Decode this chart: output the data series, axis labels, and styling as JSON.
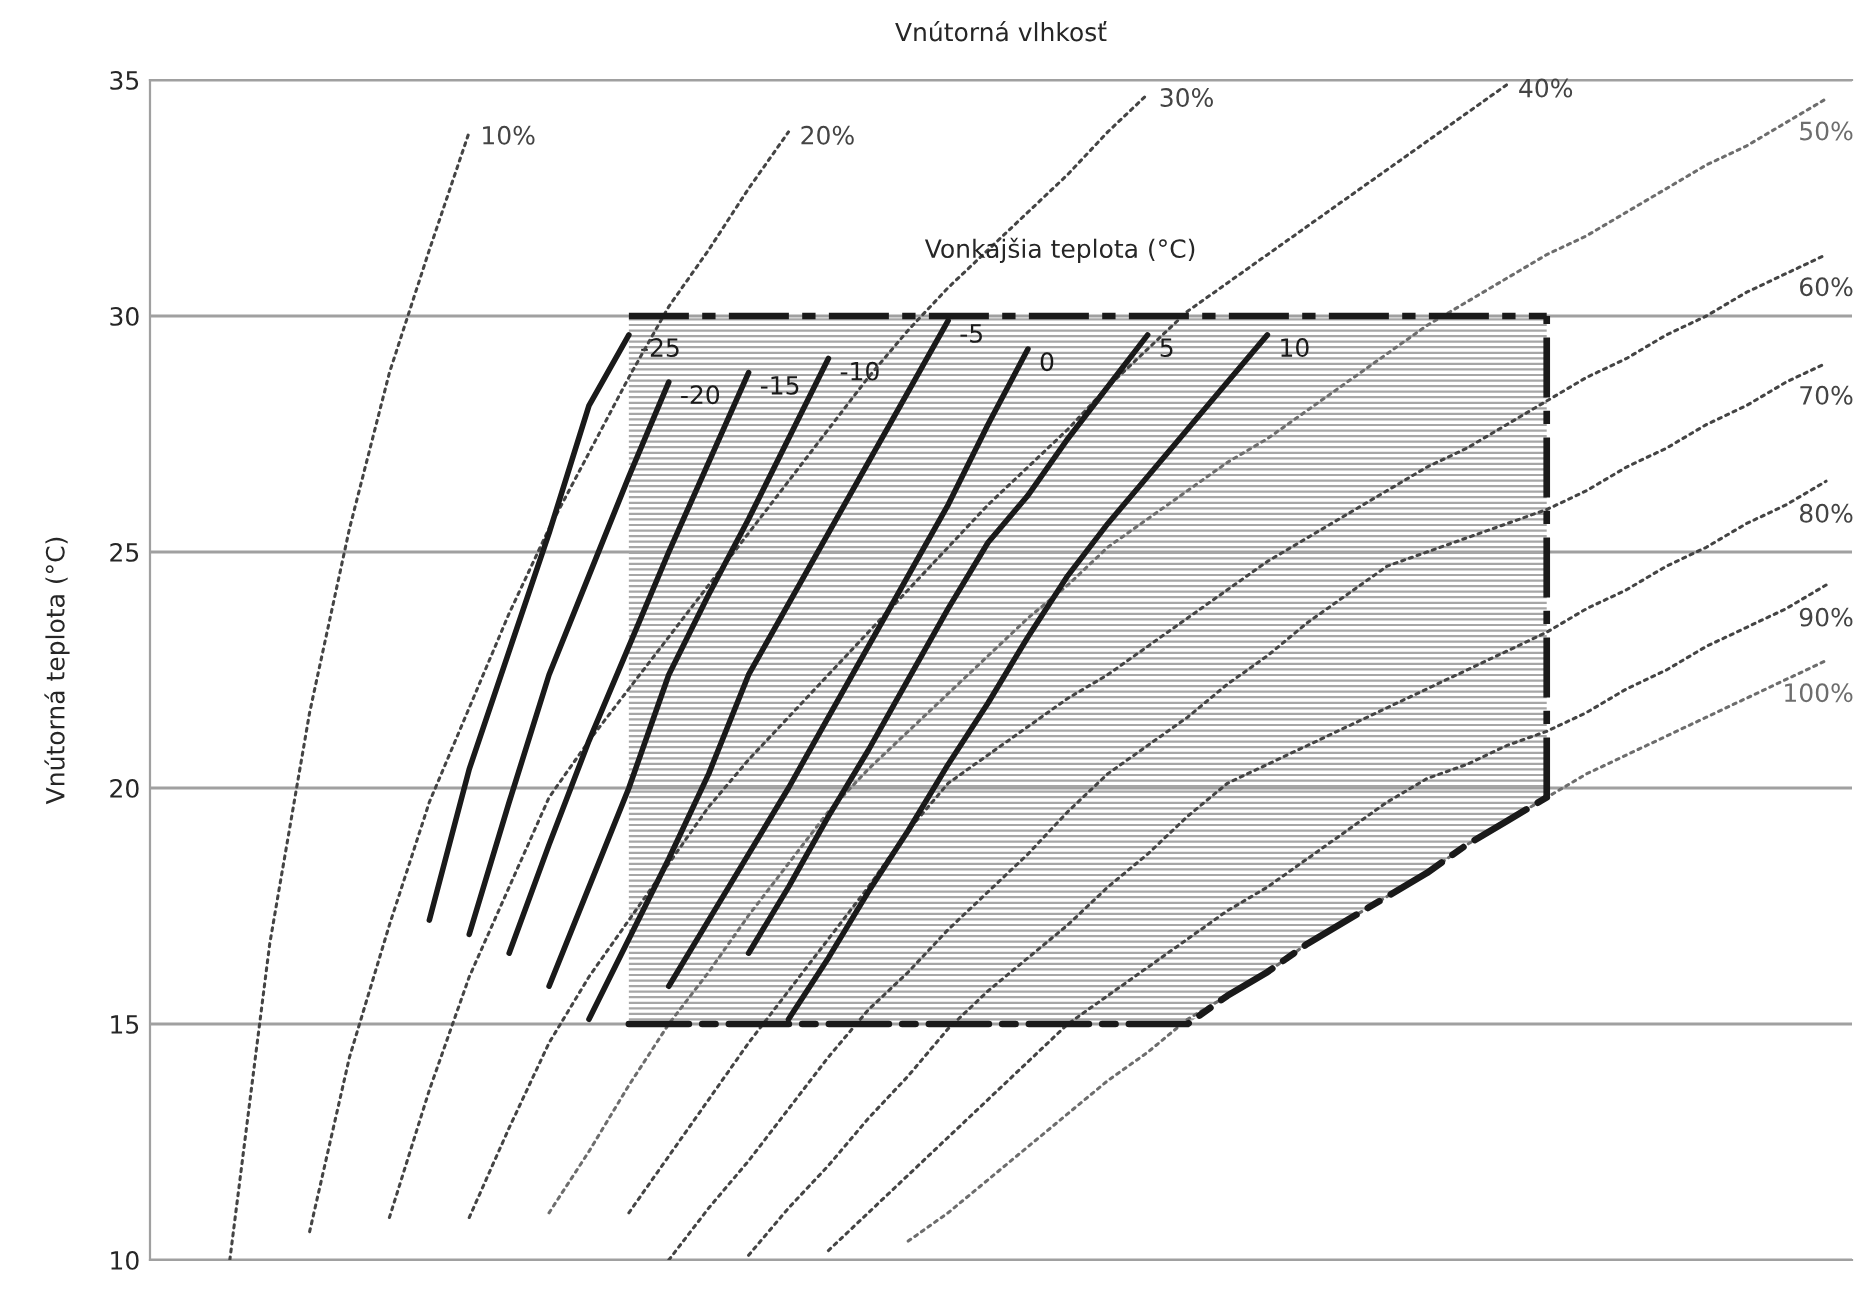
{
  "chart_data": {
    "type": "line",
    "title": "Vnútorná vlhkosť",
    "ylabel": "Vnútorná teplota (°C)",
    "annotations": [
      "Vonkajšia teplota (°C)"
    ],
    "categories": [
      null,
      null,
      null,
      null,
      null,
      null,
      null,
      null,
      null,
      null,
      null,
      null,
      null,
      null,
      null,
      null,
      null,
      null,
      null,
      null,
      null,
      null,
      null,
      null,
      null,
      null,
      null,
      null,
      null,
      null,
      null,
      null,
      null,
      null,
      null,
      null,
      null,
      null,
      null,
      null,
      null,
      null,
      null
    ],
    "ylim": [
      10,
      35
    ],
    "yticks": [
      10,
      15,
      20,
      25,
      30,
      35
    ],
    "grid": "y",
    "tick_labels": "y",
    "series": [
      {
        "name": "10%",
        "color": "#444444",
        "line_style": "dotted",
        "values": [
          null,
          null,
          10.0,
          16.7,
          21.6,
          25.5,
          28.8,
          31.4,
          33.9,
          null,
          null,
          null,
          null,
          null,
          null,
          null,
          null,
          null,
          null,
          null,
          null,
          null,
          null,
          null,
          null,
          null,
          null,
          null,
          null,
          null,
          null,
          null,
          null,
          null,
          null,
          null,
          null,
          null,
          null,
          null,
          null,
          null,
          null
        ]
      },
      {
        "name": "20%",
        "color": "#444444",
        "line_style": "dotted",
        "values": [
          null,
          null,
          null,
          null,
          10.6,
          14.3,
          17.1,
          19.7,
          21.7,
          23.7,
          25.5,
          27.1,
          28.7,
          30.2,
          31.4,
          32.7,
          33.9,
          null,
          null,
          null,
          null,
          null,
          null,
          null,
          null,
          null,
          null,
          null,
          null,
          null,
          null,
          null,
          null,
          null,
          null,
          null,
          null,
          null,
          null,
          null,
          null,
          null,
          null
        ]
      },
      {
        "name": "30%",
        "color": "#444444",
        "line_style": "dotted",
        "values": [
          null,
          null,
          null,
          null,
          null,
          null,
          10.9,
          13.6,
          16.0,
          17.9,
          19.8,
          21.0,
          22.1,
          23.2,
          24.3,
          25.4,
          26.5,
          27.6,
          28.7,
          29.7,
          30.6,
          31.4,
          32.2,
          33.0,
          33.9,
          34.7,
          null,
          null,
          null,
          null,
          null,
          null,
          null,
          null,
          null,
          null,
          null,
          null,
          null,
          null,
          null,
          null,
          null
        ]
      },
      {
        "name": "40%",
        "color": "#444444",
        "line_style": "dotted",
        "values": [
          null,
          null,
          null,
          null,
          null,
          null,
          null,
          null,
          10.9,
          12.8,
          14.6,
          16.0,
          17.2,
          18.4,
          19.6,
          20.6,
          21.5,
          22.4,
          23.3,
          24.2,
          25.1,
          26.0,
          26.8,
          27.6,
          28.5,
          29.3,
          30.1,
          30.7,
          31.3,
          31.9,
          32.5,
          33.1,
          33.7,
          34.3,
          34.9,
          null,
          null,
          null,
          null,
          null,
          null,
          null,
          null
        ]
      },
      {
        "name": "50%",
        "color": "#6d6d6d",
        "line_style": "dotted",
        "values": [
          null,
          null,
          null,
          null,
          null,
          null,
          null,
          null,
          null,
          null,
          11.0,
          12.3,
          13.7,
          15.0,
          16.1,
          17.3,
          18.4,
          19.5,
          20.4,
          21.2,
          22.0,
          22.8,
          23.6,
          24.3,
          25.1,
          25.7,
          26.3,
          26.9,
          27.4,
          28.0,
          28.6,
          29.2,
          29.8,
          30.3,
          30.8,
          31.3,
          31.7,
          32.2,
          32.7,
          33.2,
          33.6,
          34.1,
          34.6
        ]
      },
      {
        "name": "60%",
        "color": "#444444",
        "line_style": "dotted",
        "values": [
          null,
          null,
          null,
          null,
          null,
          null,
          null,
          null,
          null,
          null,
          null,
          null,
          11.0,
          12.2,
          13.4,
          14.6,
          15.7,
          16.8,
          17.9,
          19.1,
          20.1,
          20.7,
          21.3,
          21.9,
          22.4,
          23.0,
          23.6,
          24.2,
          24.8,
          25.3,
          25.8,
          26.3,
          26.8,
          27.2,
          27.7,
          28.2,
          28.7,
          29.1,
          29.6,
          30.0,
          30.5,
          30.9,
          31.3
        ]
      },
      {
        "name": "70%",
        "color": "#444444",
        "line_style": "dotted",
        "values": [
          null,
          null,
          null,
          null,
          null,
          null,
          null,
          null,
          null,
          null,
          null,
          null,
          null,
          10.0,
          11.1,
          12.1,
          13.2,
          14.3,
          15.3,
          16.1,
          17.0,
          17.8,
          18.6,
          19.5,
          20.3,
          20.9,
          21.5,
          22.2,
          22.8,
          23.5,
          24.1,
          24.7,
          25.0,
          25.3,
          25.6,
          25.9,
          26.3,
          26.8,
          27.2,
          27.7,
          28.1,
          28.6,
          29.0
        ]
      },
      {
        "name": "80%",
        "color": "#444444",
        "line_style": "dotted",
        "values": [
          null,
          null,
          null,
          null,
          null,
          null,
          null,
          null,
          null,
          null,
          null,
          null,
          null,
          null,
          null,
          10.1,
          11.1,
          12.0,
          13.0,
          13.9,
          14.9,
          15.7,
          16.4,
          17.1,
          17.9,
          18.6,
          19.4,
          20.1,
          20.5,
          20.9,
          21.3,
          21.7,
          22.1,
          22.5,
          22.9,
          23.3,
          23.8,
          24.2,
          24.7,
          25.1,
          25.6,
          26.0,
          26.5
        ]
      },
      {
        "name": "90%",
        "color": "#444444",
        "line_style": "dotted",
        "values": [
          null,
          null,
          null,
          null,
          null,
          null,
          null,
          null,
          null,
          null,
          null,
          null,
          null,
          null,
          null,
          null,
          null,
          10.2,
          11.0,
          11.8,
          12.6,
          13.4,
          14.2,
          15.0,
          15.6,
          16.2,
          16.8,
          17.4,
          17.9,
          18.5,
          19.1,
          19.7,
          20.2,
          20.5,
          20.9,
          21.2,
          21.6,
          22.1,
          22.5,
          23.0,
          23.4,
          23.8,
          24.3
        ]
      },
      {
        "name": "100%",
        "color": "#6d6d6d",
        "line_style": "dotted",
        "values": [
          null,
          null,
          null,
          null,
          null,
          null,
          null,
          null,
          null,
          null,
          null,
          null,
          null,
          null,
          null,
          null,
          null,
          null,
          null,
          10.4,
          11.0,
          11.7,
          12.4,
          13.1,
          13.8,
          14.4,
          15.1,
          15.6,
          16.1,
          16.7,
          17.2,
          17.7,
          18.2,
          18.8,
          19.3,
          19.8,
          20.3,
          20.7,
          21.1,
          21.5,
          21.9,
          22.3,
          22.7
        ]
      },
      {
        "color": "#1a1a1a",
        "line_style": "dashed",
        "values": [
          null,
          null,
          null,
          null,
          null,
          null,
          null,
          null,
          null,
          null,
          null,
          null,
          15,
          15,
          15,
          15,
          15,
          15,
          15,
          15,
          15,
          15,
          15,
          15,
          15,
          15,
          15,
          15.6,
          16.1,
          16.7,
          17.2,
          17.7,
          18.2,
          18.8,
          19.3,
          19.8,
          null,
          null,
          null,
          null,
          null,
          null,
          null
        ]
      },
      {
        "type": "area",
        "color": "#a6a6a6",
        "line_style": "dashed",
        "values": [
          null,
          null,
          null,
          null,
          null,
          null,
          null,
          null,
          null,
          null,
          null,
          null,
          30,
          30,
          30,
          30,
          30,
          30,
          30,
          30,
          30,
          30,
          30,
          30,
          30,
          30,
          30,
          30,
          30,
          30,
          30,
          30,
          30,
          30,
          30,
          30,
          null,
          null,
          null,
          null,
          null,
          null,
          null
        ]
      },
      {
        "name": "-25",
        "color": "#1a1a1a",
        "line_style": "solid",
        "values": [
          null,
          null,
          null,
          null,
          null,
          null,
          null,
          17.2,
          20.4,
          22.9,
          25.4,
          28.1,
          29.6,
          null,
          null,
          null,
          null,
          null,
          null,
          null,
          null,
          null,
          null,
          null,
          null,
          null,
          null,
          null,
          null,
          null,
          null,
          null,
          null,
          null,
          null,
          null,
          null,
          null,
          null,
          null,
          null,
          null,
          null
        ]
      },
      {
        "name": "-20",
        "color": "#1a1a1a",
        "line_style": "solid",
        "values": [
          null,
          null,
          null,
          null,
          null,
          null,
          null,
          null,
          16.9,
          19.7,
          22.4,
          24.5,
          26.6,
          28.6,
          null,
          null,
          null,
          null,
          null,
          null,
          null,
          null,
          null,
          null,
          null,
          null,
          null,
          null,
          null,
          null,
          null,
          null,
          null,
          null,
          null,
          null,
          null,
          null,
          null,
          null,
          null,
          null,
          null
        ]
      },
      {
        "name": "-15",
        "color": "#1a1a1a",
        "line_style": "solid",
        "values": [
          null,
          null,
          null,
          null,
          null,
          null,
          null,
          null,
          null,
          16.5,
          18.8,
          21.0,
          23.0,
          25.0,
          26.9,
          28.8,
          null,
          null,
          null,
          null,
          null,
          null,
          null,
          null,
          null,
          null,
          null,
          null,
          null,
          null,
          null,
          null,
          null,
          null,
          null,
          null,
          null,
          null,
          null,
          null,
          null,
          null,
          null
        ]
      },
      {
        "name": "-10",
        "color": "#1a1a1a",
        "line_style": "solid",
        "values": [
          null,
          null,
          null,
          null,
          null,
          null,
          null,
          null,
          null,
          null,
          15.8,
          17.9,
          20.0,
          22.4,
          24.1,
          25.7,
          27.4,
          29.1,
          null,
          null,
          null,
          null,
          null,
          null,
          null,
          null,
          null,
          null,
          null,
          null,
          null,
          null,
          null,
          null,
          null,
          null,
          null,
          null,
          null,
          null,
          null,
          null,
          null
        ]
      },
      {
        "name": "-5",
        "color": "#1a1a1a",
        "line_style": "solid",
        "values": [
          null,
          null,
          null,
          null,
          null,
          null,
          null,
          null,
          null,
          null,
          null,
          15.1,
          16.8,
          18.5,
          20.3,
          22.4,
          23.9,
          25.4,
          26.9,
          28.4,
          29.9,
          null,
          null,
          null,
          null,
          null,
          null,
          null,
          null,
          null,
          null,
          null,
          null,
          null,
          null,
          null,
          null,
          null,
          null,
          null,
          null,
          null,
          null
        ]
      },
      {
        "name": "0",
        "color": "#1a1a1a",
        "line_style": "solid",
        "values": [
          null,
          null,
          null,
          null,
          null,
          null,
          null,
          null,
          null,
          null,
          null,
          null,
          null,
          15.8,
          17.2,
          18.6,
          20.0,
          21.5,
          23.0,
          24.5,
          26.0,
          27.7,
          29.3,
          null,
          null,
          null,
          null,
          null,
          null,
          null,
          null,
          null,
          null,
          null,
          null,
          null,
          null,
          null,
          null,
          null,
          null,
          null,
          null
        ]
      },
      {
        "name": "5",
        "color": "#1a1a1a",
        "line_style": "solid",
        "values": [
          null,
          null,
          null,
          null,
          null,
          null,
          null,
          null,
          null,
          null,
          null,
          null,
          null,
          null,
          null,
          16.5,
          17.9,
          19.4,
          20.8,
          22.3,
          23.8,
          25.2,
          26.2,
          27.4,
          28.5,
          29.6,
          null,
          null,
          null,
          null,
          null,
          null,
          null,
          null,
          null,
          null,
          null,
          null,
          null,
          null,
          null,
          null,
          null
        ]
      },
      {
        "name": "10",
        "color": "#1a1a1a",
        "line_style": "solid",
        "values": [
          null,
          null,
          null,
          null,
          null,
          null,
          null,
          null,
          null,
          null,
          null,
          null,
          null,
          null,
          null,
          null,
          15.1,
          16.4,
          17.8,
          19.1,
          20.5,
          21.8,
          23.2,
          24.5,
          25.6,
          26.6,
          27.6,
          28.6,
          29.6,
          null,
          null,
          null,
          null,
          null,
          null,
          null,
          null,
          null,
          null,
          null,
          null,
          null,
          null
        ]
      }
    ]
  }
}
